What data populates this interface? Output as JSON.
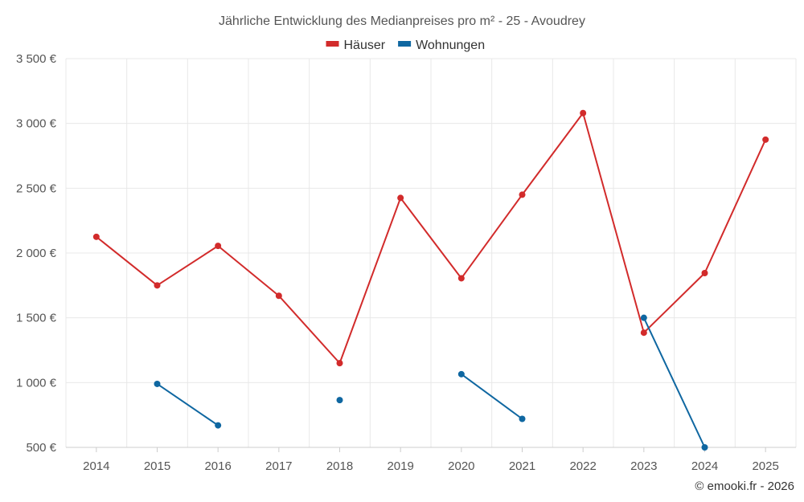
{
  "chart_data": {
    "type": "line",
    "title": "Jährliche Entwicklung des Medianpreises pro m² - 25 - Avoudrey",
    "categories": [
      "2014",
      "2015",
      "2016",
      "2017",
      "2018",
      "2019",
      "2020",
      "2021",
      "2022",
      "2023",
      "2024",
      "2025"
    ],
    "ylim": [
      500,
      3500
    ],
    "yticks": [
      500,
      1000,
      1500,
      2000,
      2500,
      3000,
      3500
    ],
    "ytick_labels": [
      "500 €",
      "1 000 €",
      "1 500 €",
      "2 000 €",
      "2 500 €",
      "3 000 €",
      "3 500 €"
    ],
    "grid": true,
    "legend_position": "top-center",
    "series": [
      {
        "name": "Häuser",
        "color": "#d22b2b",
        "values": [
          2125,
          1750,
          2055,
          1670,
          1150,
          2425,
          1805,
          2450,
          3080,
          1385,
          1845,
          2875
        ]
      },
      {
        "name": "Wohnungen",
        "color": "#0f67a1",
        "values": [
          null,
          990,
          670,
          null,
          865,
          null,
          1065,
          720,
          null,
          1500,
          500,
          null
        ]
      }
    ]
  },
  "credit": "© emooki.fr - 2026"
}
